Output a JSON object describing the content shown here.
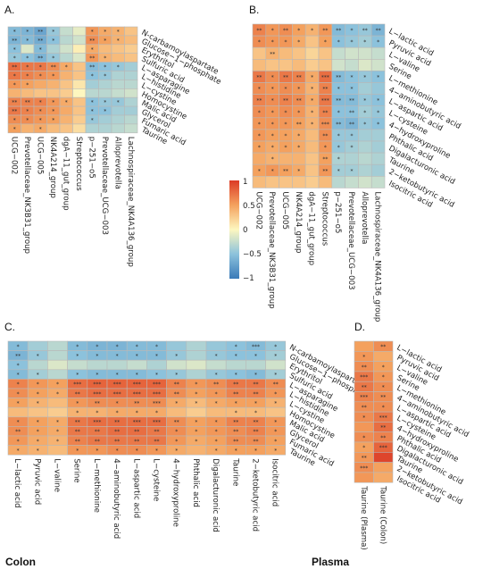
{
  "scale": {
    "ticks": [
      "1",
      "0.5",
      "0",
      "−0.5",
      "−1"
    ],
    "min": -1,
    "max": 1,
    "colors": {
      "low": "#3a7ab8",
      "mid": "#fdf7bf",
      "high": "#dc3b26"
    }
  },
  "footer": {
    "colon": "Colon",
    "plasma": "Plasma"
  },
  "chart_data": [
    {
      "panel": "A.",
      "type": "heatmap",
      "rows": [
        "N-carbamoylaspartate",
        "Glucose−1−phosphate",
        "Erythritol",
        "Sulfuric acid",
        "L−asparagine",
        "L−histidine",
        "L−cystine",
        "Homocystine",
        "Malic acid",
        "Glycerol",
        "Fumaric acid",
        "Taurine"
      ],
      "cols": [
        "UCG−002",
        "Prevotellaceae_NK3B31_group",
        "UCG−005",
        "NK4A214_group",
        "dgA−11_gut_group",
        "Streptococcus",
        "p−251−o5",
        "Prevotellaceae_UCG−003",
        "Alloprevotella",
        "Lachnospiraceae_NK4A136_group"
      ],
      "values": [
        [
          -0.55,
          -0.6,
          -0.7,
          -0.45,
          -0.25,
          -0.1,
          0.55,
          0.45,
          0.4,
          0.3
        ],
        [
          -0.6,
          -0.55,
          -0.65,
          -0.5,
          -0.3,
          -0.2,
          0.6,
          0.5,
          0.4,
          0.35
        ],
        [
          -0.5,
          -0.15,
          -0.55,
          -0.35,
          -0.2,
          0.05,
          0.45,
          0.35,
          0.3,
          0.25
        ],
        [
          -0.45,
          -0.5,
          -0.6,
          -0.45,
          -0.3,
          -0.15,
          0.55,
          0.4,
          0.35,
          0.3
        ],
        [
          0.75,
          0.7,
          0.7,
          0.6,
          0.45,
          0.3,
          -0.55,
          -0.5,
          -0.45,
          -0.4
        ],
        [
          0.7,
          0.65,
          0.6,
          0.55,
          0.4,
          0.3,
          -0.5,
          -0.45,
          -0.35,
          -0.35
        ],
        [
          0.55,
          0.5,
          0.45,
          0.4,
          0.3,
          0.1,
          -0.4,
          -0.35,
          -0.3,
          -0.3
        ],
        [
          0.4,
          0.35,
          0.3,
          0.3,
          0.25,
          0.0,
          -0.3,
          -0.3,
          -0.25,
          -0.2
        ],
        [
          0.65,
          0.65,
          0.65,
          0.55,
          0.45,
          0.3,
          -0.5,
          -0.45,
          -0.45,
          -0.35
        ],
        [
          0.7,
          0.65,
          0.6,
          0.55,
          0.45,
          0.3,
          -0.5,
          -0.5,
          -0.4,
          -0.4
        ],
        [
          0.6,
          0.6,
          0.55,
          0.5,
          0.4,
          0.25,
          -0.45,
          -0.4,
          -0.35,
          -0.3
        ],
        [
          0.5,
          0.4,
          0.45,
          0.35,
          0.3,
          0.15,
          -0.35,
          -0.35,
          -0.3,
          -0.25
        ]
      ],
      "stars": [
        [
          "*",
          "*",
          "**",
          "*",
          "",
          "",
          "*",
          "*",
          "*",
          ""
        ],
        [
          "**",
          "*",
          "**",
          "*",
          "",
          "",
          "**",
          "*",
          "*",
          ""
        ],
        [
          "*",
          "",
          "*",
          "",
          "",
          "",
          "*",
          "",
          "",
          ""
        ],
        [
          "*",
          "*",
          "**",
          "*",
          "",
          "",
          "**",
          "*",
          "",
          ""
        ],
        [
          "**",
          "*",
          "*",
          "**",
          "*",
          "",
          "**",
          "*",
          "*",
          ""
        ],
        [
          "*",
          "*",
          "*",
          "*",
          "",
          "",
          "*",
          "*",
          "",
          ""
        ],
        [
          "*",
          "*",
          "",
          "",
          "",
          "",
          "",
          "",
          "",
          ""
        ],
        [
          "",
          "",
          "",
          "",
          "",
          "",
          "",
          "",
          "",
          ""
        ],
        [
          "**",
          "**",
          "*",
          "*",
          "*",
          "",
          "*",
          "*",
          "*",
          ""
        ],
        [
          "**",
          "*",
          "*",
          "*",
          "",
          "",
          "*",
          "*",
          "",
          ""
        ],
        [
          "*",
          "*",
          "*",
          "*",
          "",
          "",
          "*",
          "",
          "",
          ""
        ],
        [
          "*",
          "",
          "*",
          "",
          "",
          "",
          "",
          "",
          "",
          ""
        ]
      ]
    },
    {
      "panel": "B.",
      "type": "heatmap",
      "rows": [
        "L−lactic acid",
        "Pyruvic acid",
        "L−valine",
        "Serine",
        "L−methionine",
        "4−aminobutyric acid",
        "L−aspartic acid",
        "L−cysteine",
        "4−hydroxyproline",
        "Phthalic acid",
        "Digalacturonic acid",
        "Taurine",
        "2−ketobutyric acid",
        "Isocitric acid"
      ],
      "cols": [
        "UCG−002",
        "Prevotellaceae_NK3B31_group",
        "UCG−005",
        "NK4A214_group",
        "dgA−11_gut_group",
        "Streptococcus",
        "p−251−o5",
        "Prevotellaceae_UCG−003",
        "Alloprevotella",
        "Lachnospiraceae_NK4A136_group"
      ],
      "values": [
        [
          0.65,
          0.55,
          0.6,
          0.5,
          0.4,
          0.55,
          -0.55,
          -0.5,
          -0.45,
          -0.6
        ],
        [
          0.6,
          0.55,
          0.55,
          0.45,
          0.3,
          0.5,
          -0.5,
          -0.45,
          -0.4,
          -0.5
        ],
        [
          0.3,
          0.4,
          0.35,
          0.3,
          0.2,
          0.3,
          -0.25,
          -0.2,
          -0.2,
          -0.25
        ],
        [
          0.35,
          0.3,
          0.3,
          0.35,
          0.25,
          0.3,
          -0.2,
          -0.25,
          -0.15,
          -0.2
        ],
        [
          0.7,
          0.6,
          0.7,
          0.65,
          0.45,
          0.75,
          -0.55,
          -0.5,
          -0.45,
          -0.5
        ],
        [
          0.6,
          0.55,
          0.6,
          0.55,
          0.4,
          0.65,
          -0.5,
          -0.5,
          -0.4,
          -0.45
        ],
        [
          0.65,
          0.6,
          0.65,
          0.6,
          0.45,
          0.7,
          -0.55,
          -0.55,
          -0.45,
          -0.5
        ],
        [
          0.6,
          0.55,
          0.6,
          0.55,
          0.4,
          0.65,
          -0.5,
          -0.5,
          -0.4,
          -0.45
        ],
        [
          0.55,
          0.55,
          0.55,
          0.5,
          0.4,
          0.6,
          -0.55,
          -0.6,
          -0.45,
          -0.5
        ],
        [
          0.55,
          0.5,
          0.5,
          0.45,
          0.35,
          0.6,
          -0.45,
          -0.45,
          -0.4,
          -0.4
        ],
        [
          0.5,
          0.45,
          0.5,
          0.45,
          0.35,
          0.55,
          -0.45,
          -0.4,
          -0.35,
          -0.4
        ],
        [
          0.45,
          0.4,
          0.4,
          0.4,
          0.3,
          0.5,
          -0.35,
          -0.35,
          -0.3,
          -0.35
        ],
        [
          0.5,
          0.55,
          0.5,
          0.45,
          0.3,
          0.55,
          -0.4,
          -0.4,
          -0.35,
          -0.4
        ],
        [
          0.35,
          0.3,
          0.3,
          0.3,
          0.25,
          0.35,
          -0.3,
          -0.25,
          -0.2,
          -0.25
        ]
      ],
      "stars": [
        [
          "**",
          "*",
          "**",
          "*",
          "*",
          "**",
          "**",
          "*",
          "**",
          "**"
        ],
        [
          "*",
          "*",
          "*",
          "*",
          "",
          "*",
          "*",
          "*",
          "*",
          "*"
        ],
        [
          "",
          "**",
          "",
          "",
          "",
          "",
          "",
          "",
          "",
          ""
        ],
        [
          "",
          "",
          "",
          "",
          "",
          "",
          "",
          "",
          "",
          ""
        ],
        [
          "**",
          "*",
          "**",
          "**",
          "*",
          "***",
          "**",
          "*",
          "*",
          "*"
        ],
        [
          "*",
          "*",
          "*",
          "*",
          "*",
          "**",
          "*",
          "*",
          "",
          ""
        ],
        [
          "**",
          "*",
          "**",
          "**",
          "*",
          "***",
          "**",
          "**",
          "*",
          "*"
        ],
        [
          "*",
          "*",
          "*",
          "*",
          "*",
          "**",
          "*",
          "**",
          "*",
          "*"
        ],
        [
          "*",
          "*",
          "*",
          "**",
          "*",
          "***",
          "**",
          "**",
          "*",
          "*"
        ],
        [
          "*",
          "*",
          "*",
          "*",
          "",
          "**",
          "*",
          "*",
          "",
          ""
        ],
        [
          "*",
          "*",
          "*",
          "*",
          "",
          "*",
          "*",
          "*",
          "",
          ""
        ],
        [
          "",
          "*",
          "",
          "",
          "",
          "**",
          "*",
          "",
          "",
          ""
        ],
        [
          "*",
          "*",
          "**",
          "*",
          "",
          "**",
          "*",
          "*",
          "",
          ""
        ],
        [
          "",
          "",
          "",
          "",
          "",
          "",
          "",
          "",
          "",
          ""
        ]
      ]
    },
    {
      "panel": "C.",
      "type": "heatmap",
      "rows": [
        "N-carbamoylaspartate",
        "Glucose−1−phosphate",
        "Erythritol",
        "Sulfuric acid",
        "L−asparagine",
        "L−histidine",
        "L−cystine",
        "Homocystine",
        "Malic acid",
        "Glycerol",
        "Fumaric acid",
        "Taurine"
      ],
      "cols": [
        "L−lactic acid",
        "Pyruvic acid",
        "L−valine",
        "Serine",
        "L−methionine",
        "4−aminobutyric acid",
        "L−aspartic acid",
        "L−cysteine",
        "4−hydroxyproline",
        "Phthalic acid",
        "Digalacturonic acid",
        "Taurine",
        "2−ketobutyric acid",
        "Isocitric acid"
      ],
      "values": [
        [
          -0.55,
          -0.4,
          -0.3,
          -0.55,
          -0.6,
          -0.6,
          -0.55,
          -0.55,
          -0.45,
          -0.35,
          -0.45,
          -0.5,
          -0.55,
          -0.45
        ],
        [
          -0.6,
          -0.45,
          -0.3,
          -0.5,
          -0.55,
          -0.55,
          -0.55,
          -0.55,
          -0.45,
          -0.35,
          -0.45,
          -0.5,
          -0.5,
          -0.4
        ],
        [
          -0.5,
          -0.3,
          -0.15,
          -0.25,
          -0.3,
          -0.3,
          -0.25,
          -0.35,
          -0.2,
          -0.15,
          -0.25,
          -0.3,
          -0.3,
          -0.2
        ],
        [
          -0.55,
          -0.4,
          -0.3,
          -0.5,
          -0.55,
          -0.55,
          -0.55,
          -0.5,
          -0.45,
          -0.35,
          -0.45,
          -0.5,
          -0.55,
          -0.4
        ],
        [
          0.65,
          0.55,
          0.5,
          0.75,
          0.8,
          0.8,
          0.8,
          0.8,
          0.65,
          0.55,
          0.6,
          0.7,
          0.7,
          0.6
        ],
        [
          0.6,
          0.5,
          0.45,
          0.7,
          0.75,
          0.75,
          0.75,
          0.75,
          0.6,
          0.5,
          0.55,
          0.65,
          0.65,
          0.55
        ],
        [
          0.5,
          0.4,
          0.35,
          0.55,
          0.6,
          0.6,
          0.6,
          0.6,
          0.45,
          0.35,
          0.45,
          0.5,
          0.5,
          0.4
        ],
        [
          0.35,
          0.3,
          0.25,
          0.4,
          0.4,
          0.45,
          0.45,
          0.45,
          0.35,
          0.25,
          0.35,
          0.35,
          0.35,
          0.3
        ],
        [
          0.6,
          0.5,
          0.45,
          0.7,
          0.75,
          0.75,
          0.75,
          0.75,
          0.6,
          0.5,
          0.55,
          0.65,
          0.65,
          0.55
        ],
        [
          0.6,
          0.5,
          0.45,
          0.7,
          0.7,
          0.75,
          0.75,
          0.7,
          0.6,
          0.5,
          0.55,
          0.6,
          0.65,
          0.55
        ],
        [
          0.55,
          0.45,
          0.4,
          0.65,
          0.7,
          0.7,
          0.7,
          0.7,
          0.55,
          0.45,
          0.5,
          0.6,
          0.6,
          0.5
        ],
        [
          0.45,
          0.4,
          0.35,
          0.55,
          0.55,
          0.6,
          0.6,
          0.55,
          0.45,
          0.4,
          0.45,
          0.5,
          0.5,
          0.45
        ]
      ],
      "stars": [
        [
          "*",
          "",
          "",
          "*",
          "*",
          "*",
          "*",
          "*",
          "",
          "",
          "",
          "*",
          "***",
          "*"
        ],
        [
          "**",
          "*",
          "",
          "*",
          "*",
          "*",
          "*",
          "*",
          "*",
          "",
          "*",
          "*",
          "*",
          "*"
        ],
        [
          "*",
          "",
          "",
          "",
          "",
          "",
          "",
          "",
          "",
          "",
          "",
          "",
          "",
          ""
        ],
        [
          "*",
          "*",
          "",
          "*",
          "*",
          "*",
          "*",
          "*",
          "*",
          "",
          "*",
          "*",
          "*",
          "*"
        ],
        [
          "*",
          "*",
          "*",
          "***",
          "***",
          "***",
          "***",
          "***",
          "**",
          "*",
          "**",
          "**",
          "**",
          "**"
        ],
        [
          "*",
          "*",
          "*",
          "**",
          "***",
          "***",
          "***",
          "***",
          "**",
          "*",
          "*",
          "**",
          "**",
          "*"
        ],
        [
          "*",
          "*",
          "",
          "*",
          "**",
          "*",
          "**",
          "***",
          "*",
          "*",
          "*",
          "*",
          "*",
          "*"
        ],
        [
          "",
          "",
          "",
          "*",
          "*",
          "*",
          "*",
          "*",
          "",
          "",
          "",
          "*",
          "*",
          ""
        ],
        [
          "*",
          "*",
          "*",
          "**",
          "***",
          "**",
          "***",
          "***",
          "**",
          "*",
          "*",
          "**",
          "**",
          "*"
        ],
        [
          "**",
          "*",
          "*",
          "**",
          "**",
          "**",
          "**",
          "**",
          "*",
          "*",
          "*",
          "**",
          "**",
          "*"
        ],
        [
          "*",
          "*",
          "*",
          "**",
          "**",
          "**",
          "**",
          "**",
          "*",
          "*",
          "*",
          "**",
          "**",
          "*"
        ],
        [
          "*",
          "*",
          "",
          "*",
          "*",
          "*",
          "*",
          "*",
          "*",
          "",
          "*",
          "*",
          "*",
          "*"
        ]
      ]
    },
    {
      "panel": "D.",
      "type": "heatmap",
      "rows": [
        "L−lactic acid",
        "Pyruvic acid",
        "L−valine",
        "Serine",
        "L−methionine",
        "4−aminobutyric acid",
        "L−aspartic acid",
        "L−cysteine",
        "4−hydroxyproline",
        "Phthalic acid",
        "Digalacturonic acid",
        "Taurine",
        "2−ketobutyric acid",
        "Isocitric acid"
      ],
      "cols": [
        "Taurine (Plasma)",
        "Taurine (Colon)"
      ],
      "values": [
        [
          0.5,
          0.6
        ],
        [
          0.55,
          0.45
        ],
        [
          0.6,
          0.5
        ],
        [
          0.7,
          0.55
        ],
        [
          0.7,
          0.6
        ],
        [
          0.65,
          0.6
        ],
        [
          0.6,
          0.6
        ],
        [
          0.6,
          0.7
        ],
        [
          0.55,
          0.75
        ],
        [
          0.6,
          0.65
        ],
        [
          0.5,
          0.8
        ],
        [
          0.55,
          0.95
        ],
        [
          0.6,
          0.5
        ],
        [
          0.55,
          0.45
        ]
      ],
      "stars": [
        [
          "",
          "**"
        ],
        [
          "*",
          ""
        ],
        [
          "**",
          "*"
        ],
        [
          "***",
          "*"
        ],
        [
          "**",
          "*"
        ],
        [
          "***",
          "**"
        ],
        [
          "**",
          "*"
        ],
        [
          "*",
          "***"
        ],
        [
          "",
          "**"
        ],
        [
          "*",
          "**"
        ],
        [
          "*",
          "***"
        ],
        [
          "**",
          ""
        ],
        [
          "***",
          ""
        ],
        [
          "",
          ""
        ]
      ]
    }
  ]
}
